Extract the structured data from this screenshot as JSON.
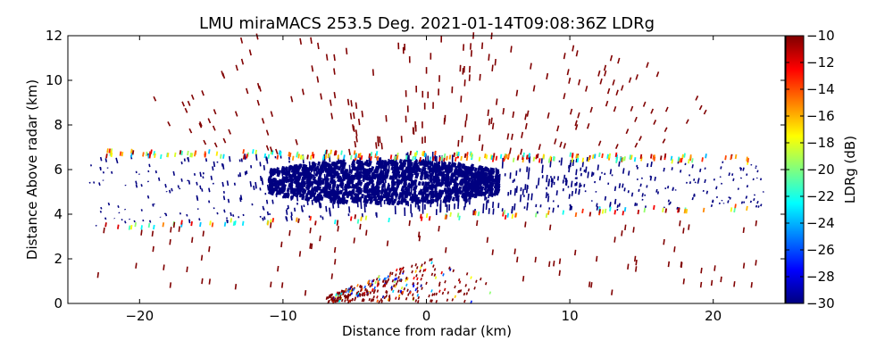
{
  "chart_data": {
    "type": "heatmap",
    "title": "LMU miraMACS 253.5 Deg. 2021-01-14T09:08:36Z  LDRg",
    "xlabel": "Distance from radar (km)",
    "ylabel": "Distance Above radar  (km)",
    "xlim": [
      -25,
      25
    ],
    "ylim": [
      0,
      12
    ],
    "x_ticks": [
      -20,
      -10,
      0,
      10,
      20
    ],
    "y_ticks": [
      0,
      2,
      4,
      6,
      8,
      10,
      12
    ],
    "x_tick_labels": [
      "−20",
      "−10",
      "0",
      "10",
      "20"
    ],
    "y_tick_labels": [
      "0",
      "2",
      "4",
      "6",
      "8",
      "10",
      "12"
    ],
    "colorbar": {
      "label": "LDRg (dB)",
      "range": [
        -30,
        -10
      ],
      "ticks": [
        -10,
        -12,
        -14,
        -16,
        -18,
        -20,
        -22,
        -24,
        -26,
        -28,
        -30
      ],
      "tick_labels": [
        "−10",
        "−12",
        "−14",
        "−16",
        "−18",
        "−20",
        "−22",
        "−24",
        "−26",
        "−28",
        "−30"
      ],
      "colormap": "jet"
    },
    "grid": false,
    "echo_regions": [
      {
        "description": "main cloud layer",
        "x_range": [
          -23.5,
          23.5
        ],
        "base_km": [
          3.4,
          4.3
        ],
        "top_km": [
          6.6,
          6.3
        ],
        "ldr_db": -30
      },
      {
        "description": "dense core",
        "x_range": [
          -11,
          5
        ],
        "base_km": 4.4,
        "top_km": 6.3,
        "ldr_db": -30
      },
      {
        "description": "cloud-top edge",
        "ldr_db_range": [
          -24,
          -10
        ]
      },
      {
        "description": "upper speckle",
        "altitude_km": [
          6.5,
          12
        ],
        "ldr_db": -10
      },
      {
        "description": "near-radar clutter",
        "x_range": [
          -7,
          5
        ],
        "altitude_km": [
          0,
          2
        ],
        "ldr_db_range": [
          -30,
          -10
        ]
      }
    ]
  }
}
